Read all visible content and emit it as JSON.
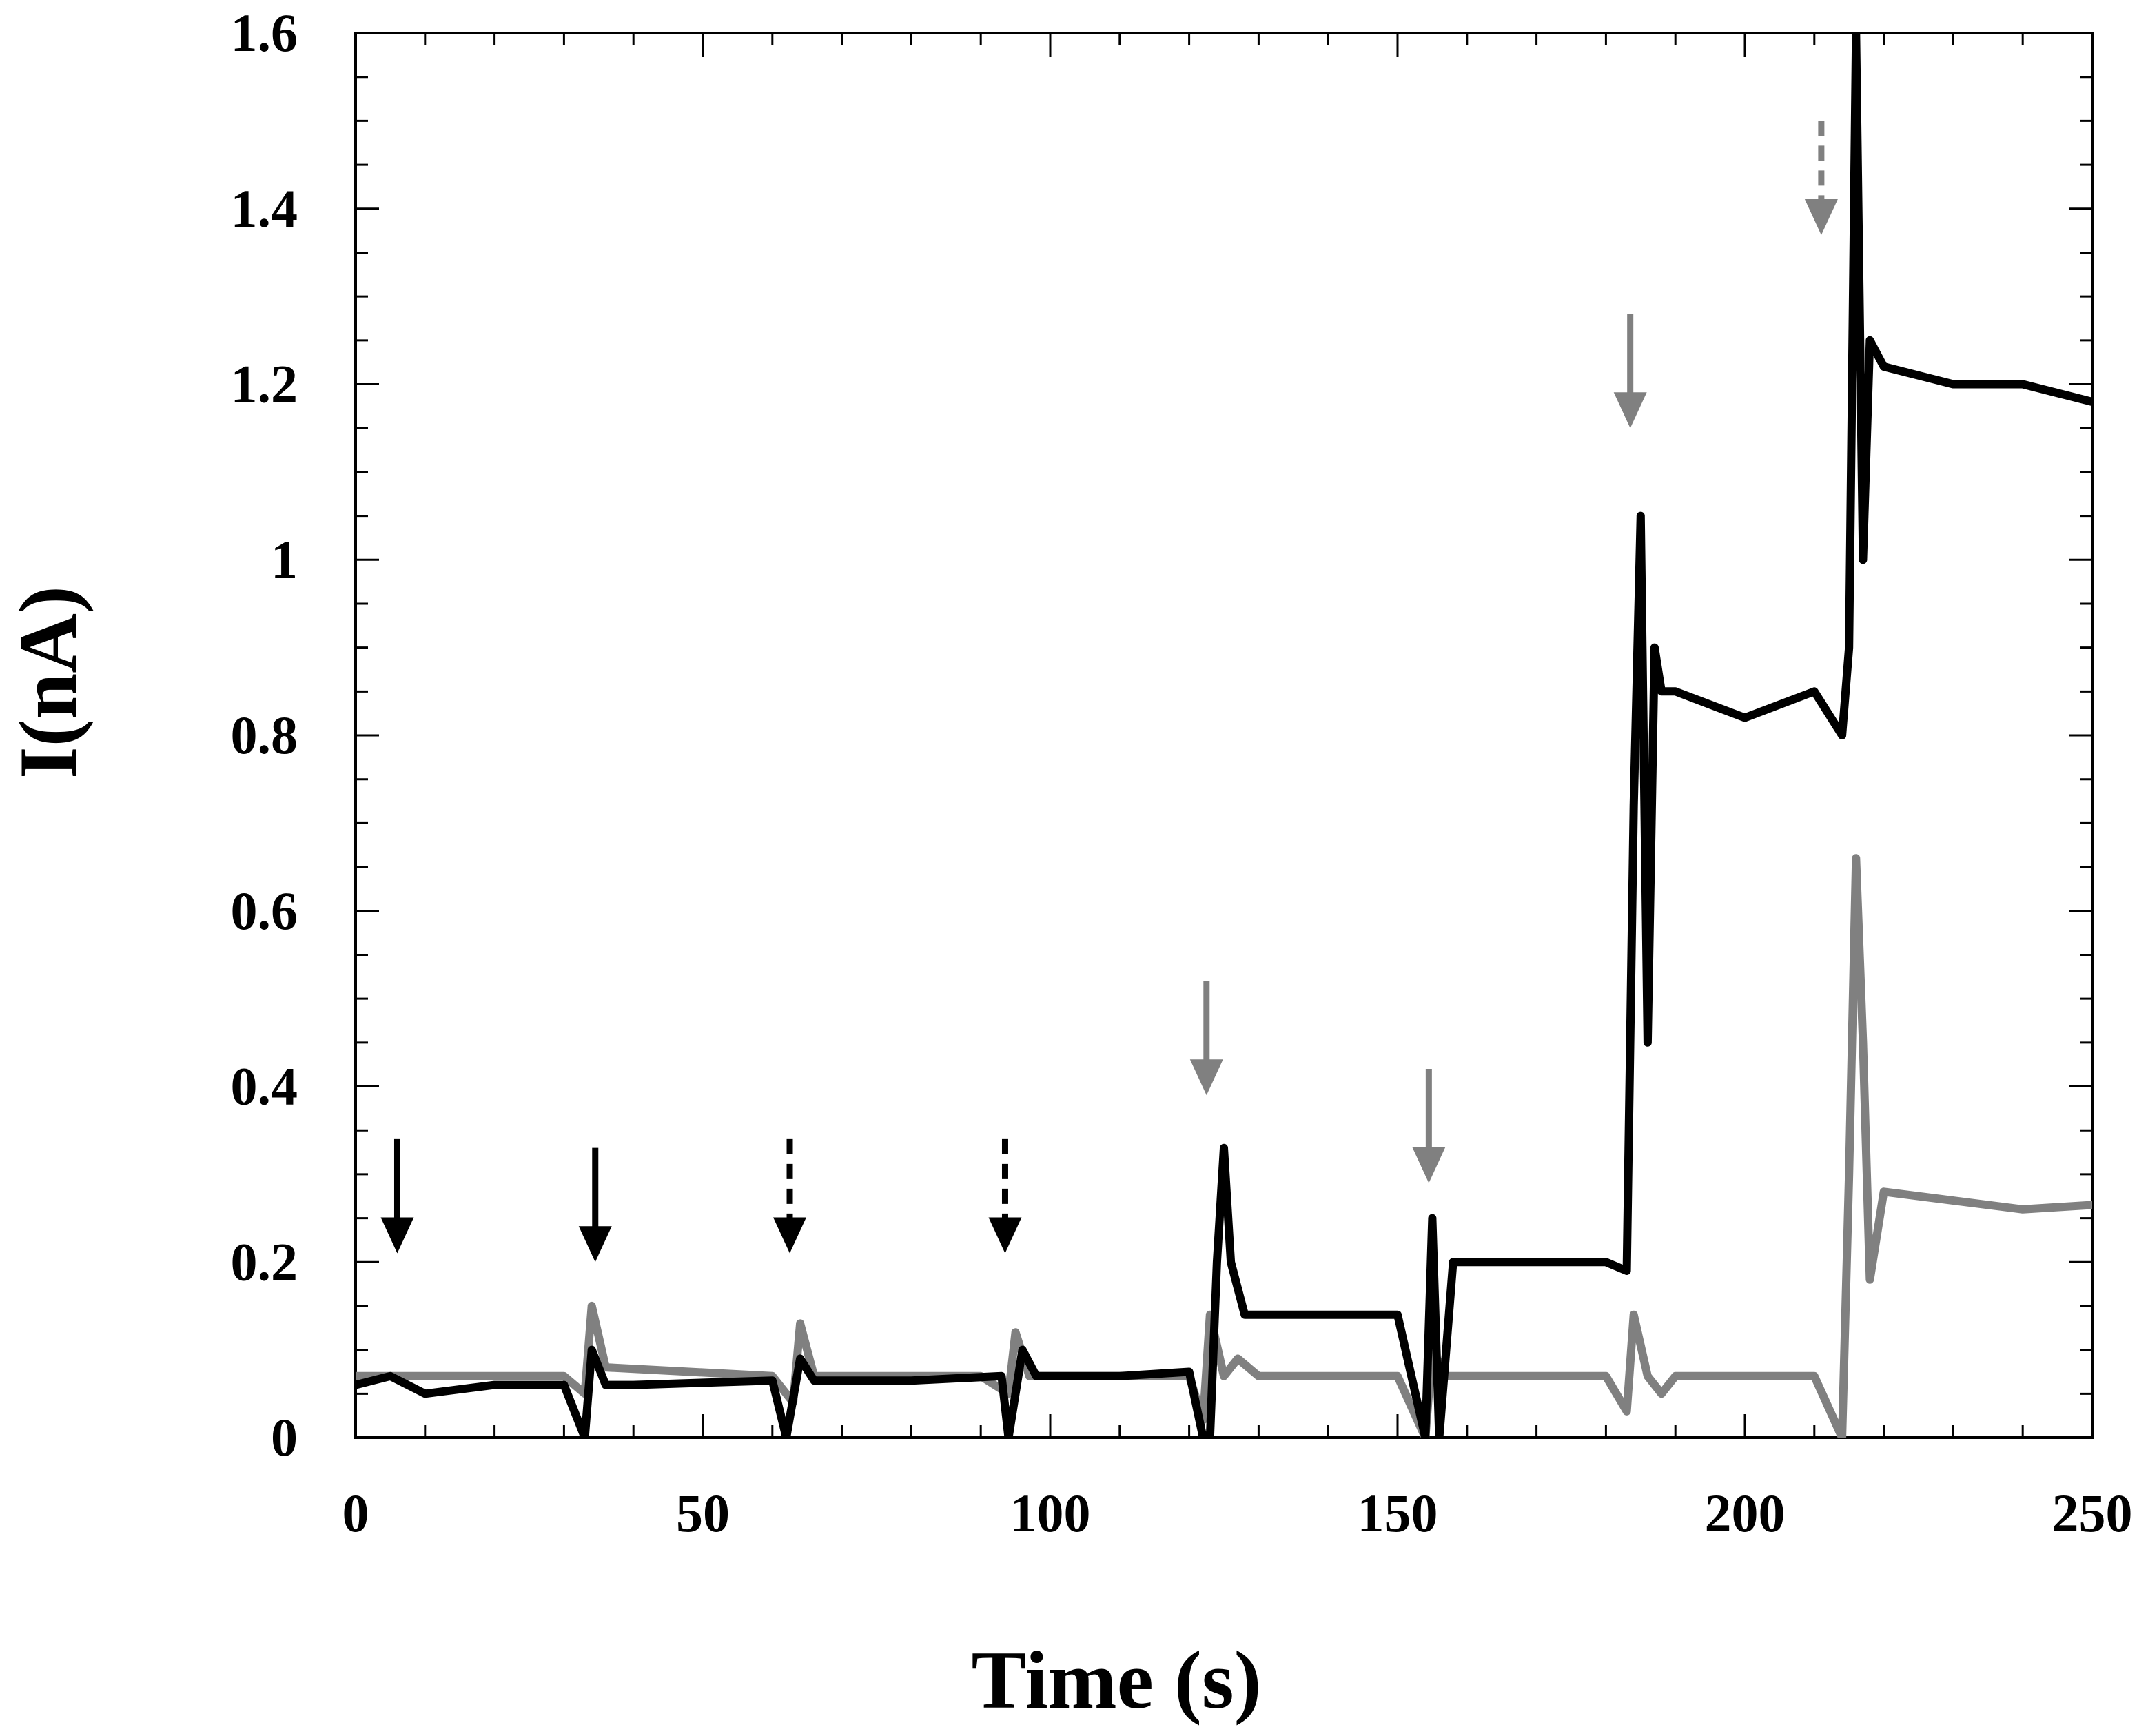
{
  "chart_data": {
    "type": "line",
    "title": "",
    "xlabel": "Time (s)",
    "ylabel": "I(nA)",
    "xlim": [
      0,
      250
    ],
    "ylim": [
      0,
      1.6
    ],
    "x_ticks": [
      0,
      50,
      100,
      150,
      200,
      250
    ],
    "x_tick_labels": [
      "0",
      "50",
      "100",
      "150",
      "200",
      "250"
    ],
    "y_ticks": [
      0,
      0.2,
      0.4,
      0.6,
      0.8,
      1.0,
      1.2,
      1.4,
      1.6
    ],
    "y_tick_labels": [
      "0",
      "0.2",
      "0.4",
      "0.6",
      "0.8",
      "1",
      "1.2",
      "1.4",
      "1.6"
    ],
    "grid": false,
    "legend": "none",
    "series": [
      {
        "color": "#000000",
        "x": [
          0,
          5,
          10,
          20,
          30,
          33,
          34,
          36,
          40,
          60,
          62,
          64,
          66,
          80,
          93,
          94,
          96,
          98,
          110,
          120,
          122,
          123,
          124,
          125,
          126,
          128,
          130,
          150,
          154,
          155,
          156,
          158,
          160,
          170,
          180,
          183,
          184,
          185,
          186,
          187,
          188,
          190,
          200,
          210,
          214,
          215,
          216,
          217,
          218,
          220,
          230,
          240,
          250
        ],
        "y": [
          0.06,
          0.07,
          0.05,
          0.06,
          0.06,
          0.0,
          0.1,
          0.06,
          0.06,
          0.065,
          0.0,
          0.09,
          0.065,
          0.065,
          0.07,
          0.0,
          0.1,
          0.07,
          0.07,
          0.075,
          0.0,
          0.0,
          0.2,
          0.33,
          0.2,
          0.14,
          0.14,
          0.14,
          0.0,
          0.25,
          0.0,
          0.2,
          0.2,
          0.2,
          0.2,
          0.19,
          0.72,
          1.05,
          0.45,
          0.9,
          0.85,
          0.85,
          0.82,
          0.85,
          0.8,
          0.9,
          1.6,
          1.0,
          1.25,
          1.22,
          1.2,
          1.2,
          1.18
        ]
      },
      {
        "color": "#808080",
        "x": [
          0,
          30,
          33,
          34,
          36,
          60,
          63,
          64,
          66,
          90,
          94,
          95,
          97,
          120,
          122,
          123,
          125,
          127,
          130,
          150,
          154,
          155,
          157,
          180,
          183,
          184,
          186,
          188,
          190,
          200,
          210,
          214,
          215,
          216,
          217,
          218,
          220,
          230,
          240,
          250
        ],
        "y": [
          0.07,
          0.07,
          0.05,
          0.15,
          0.08,
          0.07,
          0.04,
          0.13,
          0.07,
          0.07,
          0.05,
          0.12,
          0.07,
          0.07,
          0.02,
          0.14,
          0.07,
          0.09,
          0.07,
          0.07,
          0.0,
          0.1,
          0.07,
          0.07,
          0.03,
          0.14,
          0.07,
          0.05,
          0.07,
          0.07,
          0.07,
          0.0,
          0.3,
          0.66,
          0.45,
          0.18,
          0.28,
          0.27,
          0.26,
          0.265
        ]
      }
    ],
    "annotations": [
      {
        "type": "arrow",
        "style": "solid",
        "color": "#000000",
        "x": 6,
        "y_from": 0.34,
        "y_to": 0.21
      },
      {
        "type": "arrow",
        "style": "solid",
        "color": "#000000",
        "x": 34.5,
        "y_from": 0.33,
        "y_to": 0.2
      },
      {
        "type": "arrow",
        "style": "dashed",
        "color": "#000000",
        "x": 62.5,
        "y_from": 0.34,
        "y_to": 0.21
      },
      {
        "type": "arrow",
        "style": "dashed",
        "color": "#000000",
        "x": 93.5,
        "y_from": 0.34,
        "y_to": 0.21
      },
      {
        "type": "arrow",
        "style": "solid",
        "color": "#808080",
        "x": 122.5,
        "y_from": 0.52,
        "y_to": 0.39
      },
      {
        "type": "arrow",
        "style": "solid",
        "color": "#808080",
        "x": 154.5,
        "y_from": 0.42,
        "y_to": 0.29
      },
      {
        "type": "arrow",
        "style": "solid",
        "color": "#808080",
        "x": 183.5,
        "y_from": 1.28,
        "y_to": 1.15
      },
      {
        "type": "arrow",
        "style": "dashed",
        "color": "#808080",
        "x": 211,
        "y_from": 1.5,
        "y_to": 1.37
      }
    ]
  }
}
